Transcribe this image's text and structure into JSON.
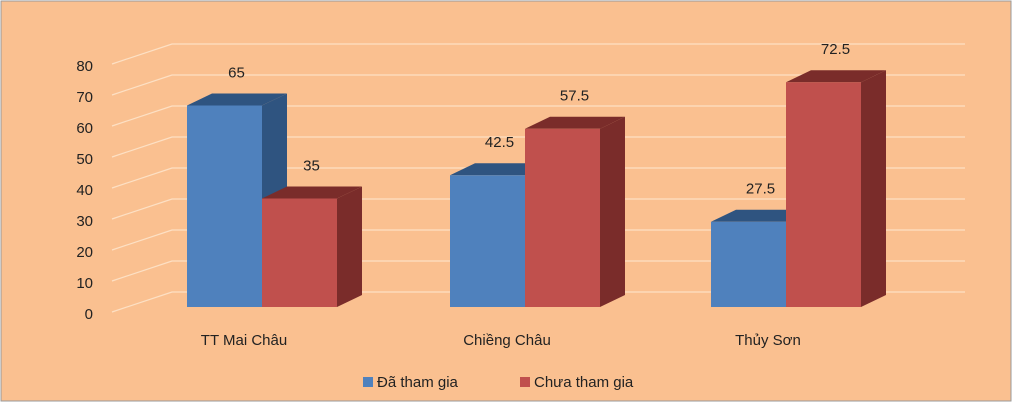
{
  "chart_data": {
    "type": "bar3d",
    "categories": [
      "TT Mai Châu",
      "Chiềng Châu",
      "Thủy Sơn"
    ],
    "series": [
      {
        "name": "Đã tham gia",
        "color": "#4f81bd",
        "side": "#2f5480",
        "values": [
          65,
          42.5,
          27.5
        ]
      },
      {
        "name": "Chưa tham gia",
        "color": "#c0504d",
        "side": "#7a2c2a",
        "values": [
          35,
          57.5,
          72.5
        ]
      }
    ],
    "ylim": [
      0,
      80
    ],
    "yticks": [
      0,
      10,
      20,
      30,
      40,
      50,
      60,
      70,
      80
    ],
    "grid": true,
    "legend": "bottom"
  }
}
